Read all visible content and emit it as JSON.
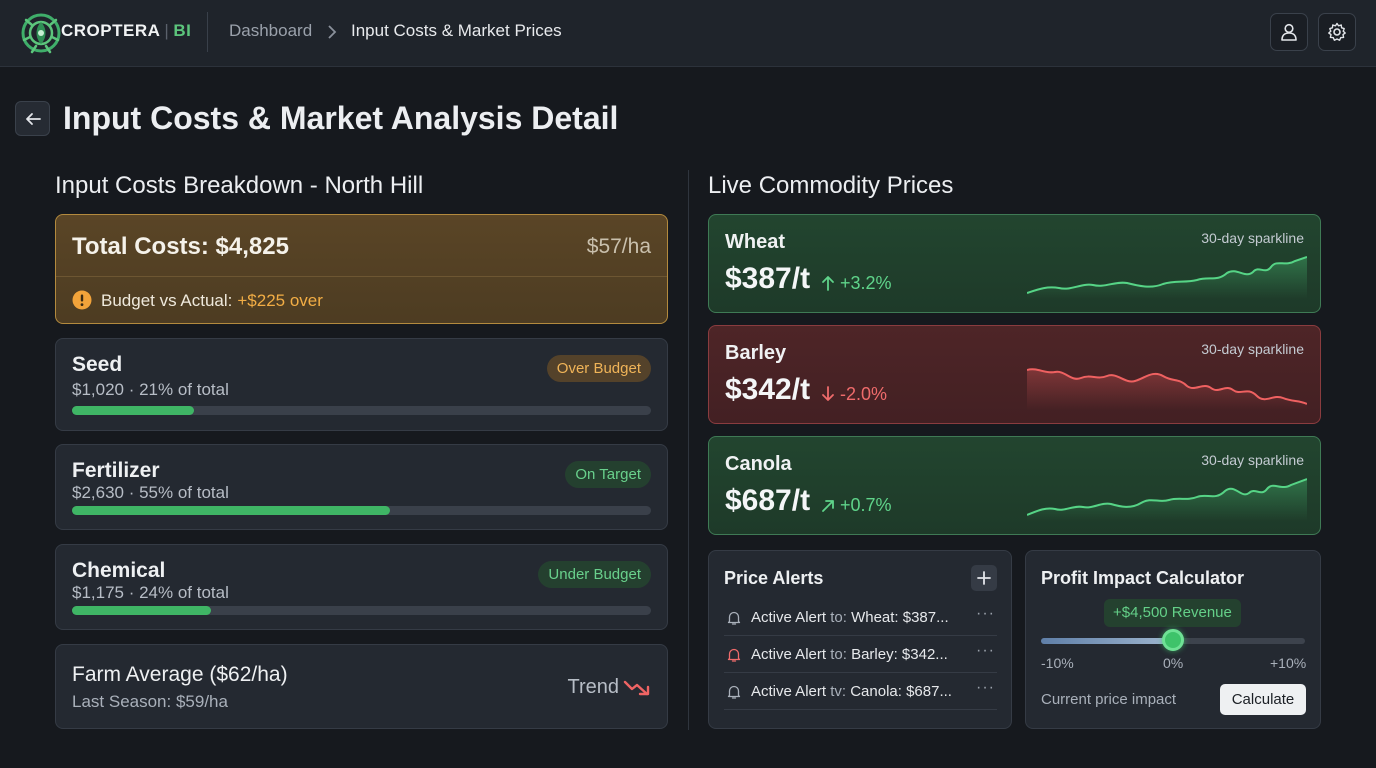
{
  "header": {
    "brand_name": "CROPTERA",
    "brand_suffix": "BI",
    "brand_separator": "|",
    "breadcrumb_root": "Dashboard",
    "breadcrumb_current": "Input Costs & Market Prices"
  },
  "page": {
    "title": "Input Costs & Market Analysis Detail"
  },
  "costs": {
    "section_title": "Input Costs Breakdown - North Hill",
    "total_label": "Total Costs: $4,825",
    "total_per_ha": "$57/ha",
    "budget_label": "Budget vs Actual:",
    "budget_value": "+$225 over",
    "items": [
      {
        "name": "Seed",
        "detail": "$1,020 · 21% of total",
        "badge": "Over Budget",
        "share": 0.21
      },
      {
        "name": "Fertilizer",
        "detail": "$2,630 · 55% of total",
        "badge": "On Target",
        "share": 0.55
      },
      {
        "name": "Chemical",
        "detail": "$1,175 · 24% of total",
        "badge": "Under Budget",
        "share": 0.24
      }
    ],
    "average": {
      "title": "Farm Average ($62/ha)",
      "last_season": "Last Season: $59/ha",
      "trend_label": "Trend"
    }
  },
  "commodities": {
    "section_title": "Live Commodity Prices",
    "sparkline_label": "30-day sparkline",
    "items": [
      {
        "name": "Wheat",
        "price": "$387/t",
        "change": "+3.2%",
        "direction": "up"
      },
      {
        "name": "Barley",
        "price": "$342/t",
        "change": "-2.0%",
        "direction": "down"
      },
      {
        "name": "Canola",
        "price": "$687/t",
        "change": "+0.7%",
        "direction": "up"
      }
    ]
  },
  "alerts": {
    "title": "Price Alerts",
    "items": [
      {
        "prefix": "Active Alert",
        "joiner": "to:",
        "target": "Wheat: $387..."
      },
      {
        "prefix": "Active Alert",
        "joiner": "to:",
        "target": "Barley: $342..."
      },
      {
        "prefix": "Active Alert",
        "joiner": "tv:",
        "target": "Canola: $687..."
      }
    ],
    "more_label": "···"
  },
  "calculator": {
    "title": "Profit Impact Calculator",
    "revenue_badge": "+$4,500 Revenue",
    "slider_min": "-10%",
    "slider_mid": "0%",
    "slider_max": "+10%",
    "slider_value": 0.5,
    "footer_label": "Current price impact",
    "button_label": "Calculate"
  },
  "colors": {
    "accent_green": "#3fb565",
    "warning_amber": "#f2ad45",
    "down_red": "#ef6b6b"
  }
}
